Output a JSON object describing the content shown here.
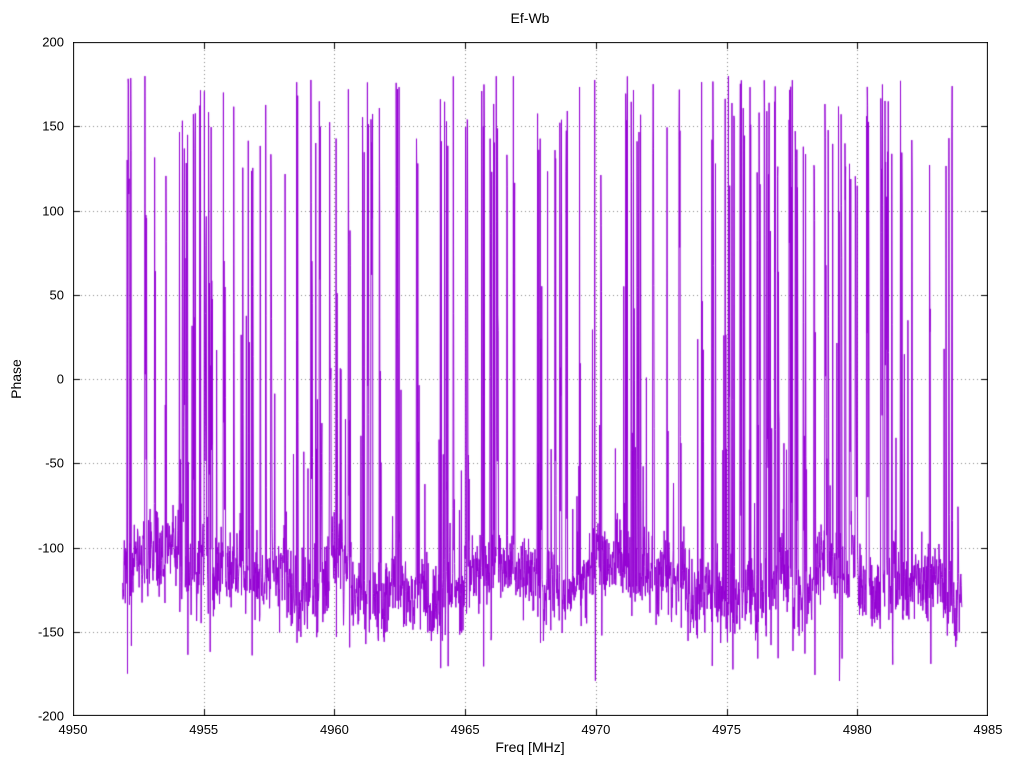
{
  "chart_data": {
    "type": "line",
    "title": "Ef-Wb",
    "xlabel": "Freq [MHz]",
    "ylabel": "Phase",
    "xlim": [
      4950,
      4985
    ],
    "ylim": [
      -200,
      200
    ],
    "xticks": [
      4950,
      4955,
      4960,
      4965,
      4970,
      4975,
      4980,
      4985
    ],
    "yticks": [
      -200,
      -150,
      -100,
      -50,
      0,
      50,
      100,
      150,
      200
    ],
    "grid": true,
    "grid_style": "dotted-gray",
    "legend": "none",
    "background": "#ffffff",
    "axis_color": "#000000",
    "series": [
      {
        "name": "phase",
        "color": "#9400d3",
        "x_start": 4951.9,
        "x_end": 4984.0,
        "n_points": 2600,
        "baseline": -120,
        "baseline_range": [
          -155,
          -90
        ],
        "noise_sigma": 13,
        "spike_probability": 0.055,
        "spike_run_max": 6,
        "wrap_min": -180,
        "wrap_max": 180,
        "seed": 7,
        "description": "Wrapped interferometric fringe phase vs frequency: dense noise concentrated near -100 to -150 deg with frequent wrap-around spikes spanning -180 to +180 deg"
      }
    ]
  }
}
